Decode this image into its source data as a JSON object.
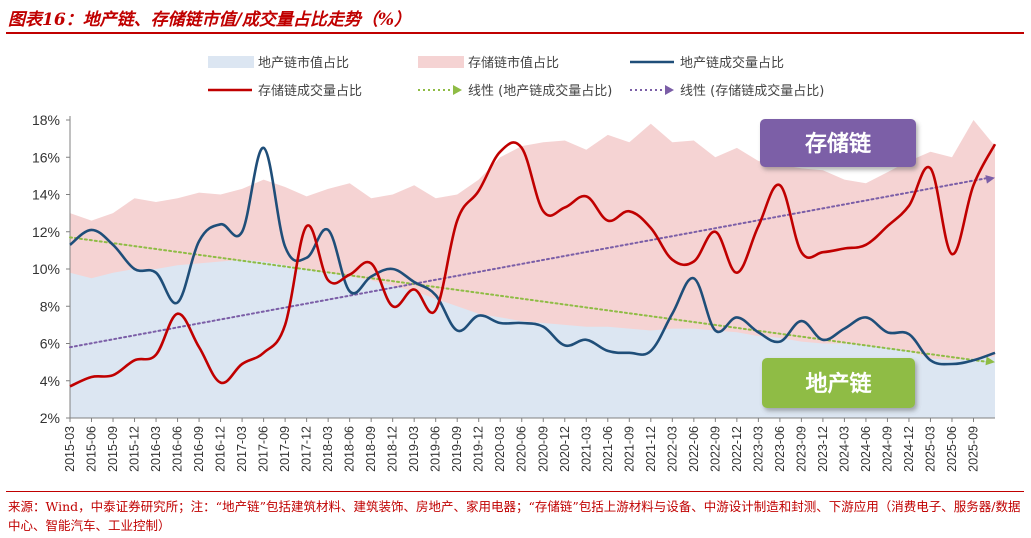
{
  "figure_title": "图表16：地产链、存储链市值/成交量占比走势（%）",
  "source_note": "来源：Wind，中泰证券研究所；注：“地产链”包括建筑材料、建筑装饰、房地产、家用电器；“存储链”包括上游材料与设备、中游设计制造和封测、下游应用（消费电子、服务器/数据中心、智能汽车、工业控制）",
  "colors": {
    "title_red": "#c00000",
    "realestate_area": "#dce6f2",
    "storage_area": "#f5d3d3",
    "realestate_line": "#1f4e79",
    "storage_line": "#c00000",
    "realestate_trend": "#8fbc45",
    "storage_trend": "#7b5ea7",
    "storage_callout_bg": "#7b5ea7",
    "realestate_callout_bg": "#8fbc45"
  },
  "chart_data": {
    "type": "area",
    "title": "",
    "xlabel": "",
    "ylabel": "",
    "y_unit": "%",
    "ylim": [
      2,
      18
    ],
    "yticks": [
      2,
      4,
      6,
      8,
      10,
      12,
      14,
      16,
      18
    ],
    "x_range": [
      "2015-03",
      "2025-12"
    ],
    "x_tick_labels": [
      "2015-03",
      "2015-06",
      "2015-09",
      "2015-12",
      "2016-03",
      "2016-06",
      "2016-09",
      "2016-12",
      "2017-03",
      "2017-06",
      "2017-09",
      "2017-12",
      "2018-03",
      "2018-06",
      "2018-09",
      "2018-12",
      "2019-03",
      "2019-06",
      "2019-09",
      "2019-12",
      "2020-03",
      "2020-06",
      "2020-09",
      "2020-12",
      "2021-03",
      "2021-06",
      "2021-09",
      "2021-12",
      "2022-03",
      "2022-06",
      "2022-09",
      "2022-12",
      "2023-03",
      "2023-06",
      "2023-09",
      "2023-12",
      "2024-03",
      "2024-06",
      "2024-09",
      "2024-12",
      "2025-03",
      "2025-06",
      "2025-09"
    ],
    "grid": false,
    "legend_position": "top",
    "series": [
      {
        "name": "地产链市值占比",
        "kind": "area",
        "color": "#dce6f2",
        "points": [
          [
            "2015-03",
            9.8
          ],
          [
            "2015-06",
            9.5
          ],
          [
            "2015-09",
            9.8
          ],
          [
            "2015-12",
            10.0
          ],
          [
            "2016-03",
            10.0
          ],
          [
            "2016-06",
            10.2
          ],
          [
            "2016-09",
            10.3
          ],
          [
            "2016-12",
            10.4
          ],
          [
            "2017-03",
            10.5
          ],
          [
            "2017-06",
            10.4
          ],
          [
            "2017-09",
            10.2
          ],
          [
            "2017-12",
            10.0
          ],
          [
            "2018-03",
            9.8
          ],
          [
            "2018-06",
            9.6
          ],
          [
            "2018-09",
            9.4
          ],
          [
            "2018-12",
            9.1
          ],
          [
            "2019-03",
            8.8
          ],
          [
            "2019-06",
            8.4
          ],
          [
            "2019-09",
            8.0
          ],
          [
            "2019-12",
            7.6
          ],
          [
            "2020-03",
            7.4
          ],
          [
            "2020-06",
            7.2
          ],
          [
            "2020-09",
            7.1
          ],
          [
            "2020-12",
            7.0
          ],
          [
            "2021-03",
            6.9
          ],
          [
            "2021-06",
            6.9
          ],
          [
            "2021-09",
            6.8
          ],
          [
            "2021-12",
            6.7
          ],
          [
            "2022-03",
            6.8
          ],
          [
            "2022-06",
            6.8
          ],
          [
            "2022-09",
            6.7
          ],
          [
            "2022-12",
            6.6
          ],
          [
            "2023-03",
            6.4
          ],
          [
            "2023-06",
            6.3
          ],
          [
            "2023-09",
            6.1
          ],
          [
            "2023-12",
            6.0
          ],
          [
            "2024-03",
            6.0
          ],
          [
            "2024-06",
            5.9
          ],
          [
            "2024-09",
            5.8
          ],
          [
            "2024-12",
            5.6
          ],
          [
            "2025-03",
            5.2
          ],
          [
            "2025-06",
            5.1
          ],
          [
            "2025-09",
            5.2
          ],
          [
            "2025-12",
            5.3
          ]
        ]
      },
      {
        "name": "存储链市值占比",
        "kind": "area",
        "color": "#f5d3d3",
        "points": [
          [
            "2015-03",
            13.0
          ],
          [
            "2015-06",
            12.6
          ],
          [
            "2015-09",
            13.0
          ],
          [
            "2015-12",
            13.8
          ],
          [
            "2016-03",
            13.6
          ],
          [
            "2016-06",
            13.8
          ],
          [
            "2016-09",
            14.1
          ],
          [
            "2016-12",
            14.0
          ],
          [
            "2017-03",
            14.3
          ],
          [
            "2017-06",
            14.8
          ],
          [
            "2017-09",
            14.4
          ],
          [
            "2017-12",
            13.9
          ],
          [
            "2018-03",
            14.3
          ],
          [
            "2018-06",
            14.6
          ],
          [
            "2018-09",
            13.8
          ],
          [
            "2018-12",
            14.0
          ],
          [
            "2019-03",
            14.5
          ],
          [
            "2019-06",
            13.8
          ],
          [
            "2019-09",
            14.0
          ],
          [
            "2019-12",
            14.8
          ],
          [
            "2020-03",
            16.0
          ],
          [
            "2020-06",
            16.6
          ],
          [
            "2020-09",
            16.8
          ],
          [
            "2020-12",
            16.9
          ],
          [
            "2021-03",
            16.4
          ],
          [
            "2021-06",
            17.2
          ],
          [
            "2021-09",
            16.8
          ],
          [
            "2021-12",
            17.8
          ],
          [
            "2022-03",
            16.8
          ],
          [
            "2022-06",
            16.9
          ],
          [
            "2022-09",
            16.0
          ],
          [
            "2022-12",
            16.5
          ],
          [
            "2023-03",
            15.8
          ],
          [
            "2023-06",
            15.6
          ],
          [
            "2023-09",
            15.4
          ],
          [
            "2023-12",
            15.3
          ],
          [
            "2024-03",
            14.8
          ],
          [
            "2024-06",
            14.6
          ],
          [
            "2024-09",
            15.2
          ],
          [
            "2024-12",
            15.8
          ],
          [
            "2025-03",
            16.3
          ],
          [
            "2025-06",
            16.0
          ],
          [
            "2025-09",
            18.0
          ],
          [
            "2025-12",
            16.6
          ]
        ]
      },
      {
        "name": "地产链成交量占比",
        "kind": "line",
        "color": "#1f4e79",
        "points": [
          [
            "2015-03",
            11.3
          ],
          [
            "2015-06",
            12.1
          ],
          [
            "2015-09",
            11.3
          ],
          [
            "2015-12",
            10.0
          ],
          [
            "2016-03",
            9.8
          ],
          [
            "2016-06",
            8.2
          ],
          [
            "2016-09",
            11.5
          ],
          [
            "2016-12",
            12.4
          ],
          [
            "2017-03",
            12.0
          ],
          [
            "2017-06",
            16.5
          ],
          [
            "2017-09",
            11.2
          ],
          [
            "2017-12",
            10.6
          ],
          [
            "2018-03",
            12.1
          ],
          [
            "2018-06",
            8.8
          ],
          [
            "2018-09",
            9.6
          ],
          [
            "2018-12",
            10.0
          ],
          [
            "2019-03",
            9.3
          ],
          [
            "2019-06",
            8.6
          ],
          [
            "2019-09",
            6.7
          ],
          [
            "2019-12",
            7.5
          ],
          [
            "2020-03",
            7.1
          ],
          [
            "2020-06",
            7.1
          ],
          [
            "2020-09",
            6.9
          ],
          [
            "2020-12",
            5.9
          ],
          [
            "2021-03",
            6.2
          ],
          [
            "2021-06",
            5.6
          ],
          [
            "2021-09",
            5.5
          ],
          [
            "2021-12",
            5.6
          ],
          [
            "2022-03",
            7.6
          ],
          [
            "2022-06",
            9.5
          ],
          [
            "2022-09",
            6.7
          ],
          [
            "2022-12",
            7.4
          ],
          [
            "2023-03",
            6.6
          ],
          [
            "2023-06",
            6.1
          ],
          [
            "2023-09",
            7.2
          ],
          [
            "2023-12",
            6.2
          ],
          [
            "2024-03",
            6.8
          ],
          [
            "2024-06",
            7.4
          ],
          [
            "2024-09",
            6.6
          ],
          [
            "2024-12",
            6.5
          ],
          [
            "2025-03",
            5.1
          ],
          [
            "2025-06",
            4.9
          ],
          [
            "2025-09",
            5.1
          ],
          [
            "2025-12",
            5.5
          ]
        ]
      },
      {
        "name": "存储链成交量占比",
        "kind": "line",
        "color": "#c00000",
        "points": [
          [
            "2015-03",
            3.7
          ],
          [
            "2015-06",
            4.2
          ],
          [
            "2015-09",
            4.3
          ],
          [
            "2015-12",
            5.1
          ],
          [
            "2016-03",
            5.4
          ],
          [
            "2016-06",
            7.6
          ],
          [
            "2016-09",
            5.8
          ],
          [
            "2016-12",
            3.9
          ],
          [
            "2017-03",
            4.9
          ],
          [
            "2017-06",
            5.5
          ],
          [
            "2017-09",
            7.0
          ],
          [
            "2017-12",
            12.3
          ],
          [
            "2018-03",
            9.4
          ],
          [
            "2018-06",
            9.7
          ],
          [
            "2018-09",
            10.3
          ],
          [
            "2018-12",
            8.0
          ],
          [
            "2019-03",
            8.9
          ],
          [
            "2019-06",
            7.8
          ],
          [
            "2019-09",
            12.6
          ],
          [
            "2019-12",
            14.2
          ],
          [
            "2020-03",
            16.3
          ],
          [
            "2020-06",
            16.5
          ],
          [
            "2020-09",
            13.1
          ],
          [
            "2020-12",
            13.3
          ],
          [
            "2021-03",
            13.9
          ],
          [
            "2021-06",
            12.6
          ],
          [
            "2021-09",
            13.1
          ],
          [
            "2021-12",
            12.2
          ],
          [
            "2022-03",
            10.5
          ],
          [
            "2022-06",
            10.4
          ],
          [
            "2022-09",
            12.0
          ],
          [
            "2022-12",
            9.8
          ],
          [
            "2023-03",
            12.3
          ],
          [
            "2023-06",
            14.5
          ],
          [
            "2023-09",
            10.9
          ],
          [
            "2023-12",
            10.9
          ],
          [
            "2024-03",
            11.1
          ],
          [
            "2024-06",
            11.3
          ],
          [
            "2024-09",
            12.3
          ],
          [
            "2024-12",
            13.4
          ],
          [
            "2025-03",
            15.4
          ],
          [
            "2025-06",
            10.8
          ],
          [
            "2025-09",
            14.5
          ],
          [
            "2025-12",
            16.7
          ]
        ]
      },
      {
        "name": "线性 (地产链成交量占比)",
        "kind": "trend",
        "color": "#8fbc45",
        "points": [
          [
            "2015-03",
            11.7
          ],
          [
            "2025-12",
            5.0
          ]
        ]
      },
      {
        "name": "线性 (存储链成交量占比)",
        "kind": "trend",
        "color": "#7b5ea7",
        "points": [
          [
            "2015-03",
            5.8
          ],
          [
            "2025-12",
            14.9
          ]
        ]
      }
    ],
    "annotations": [
      {
        "text": "存储链",
        "style": "callout-purple"
      },
      {
        "text": "地产链",
        "style": "callout-green"
      }
    ]
  }
}
